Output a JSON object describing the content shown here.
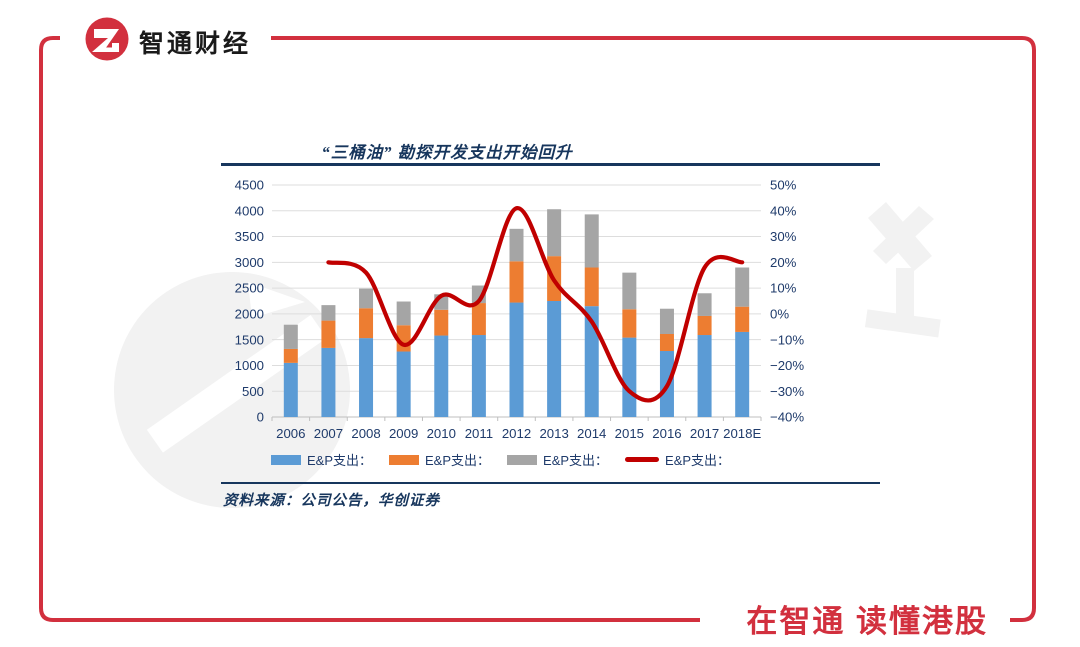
{
  "brand": {
    "name": "智通财经",
    "logo": "zhitong-zg-monogram"
  },
  "slogan": "在智通 读懂港股",
  "source_note": "资料来源：公司公告，华创证券",
  "colors": {
    "accent_red": "#D2303E",
    "line_red": "#C00000",
    "navy": "#17365D",
    "axis_text": "#1F3B6B",
    "bar_blue": "#5B9BD5",
    "bar_orange": "#ED7D31",
    "bar_gray": "#A5A5A5",
    "gridline": "#DDDDDD",
    "watermark": "#F2F2F2"
  },
  "chart_data": {
    "type": "combo-stacked-bar-line",
    "title": "“三桶油” 勘探开发支出开始回升",
    "categories": [
      "2006",
      "2007",
      "2008",
      "2009",
      "2010",
      "2011",
      "2012",
      "2013",
      "2014",
      "2015",
      "2016",
      "2017",
      "2018E"
    ],
    "bar_series": [
      {
        "name": "E&P支出：",
        "color": "#5B9BD5",
        "values": [
          1050,
          1340,
          1530,
          1270,
          1580,
          1590,
          2220,
          2250,
          2150,
          1540,
          1280,
          1590,
          1650
        ]
      },
      {
        "name": "E&P支出：",
        "color": "#ED7D31",
        "values": [
          270,
          530,
          580,
          510,
          500,
          620,
          800,
          870,
          750,
          550,
          330,
          370,
          490
        ]
      },
      {
        "name": "E&P支出：",
        "color": "#A5A5A5",
        "values": [
          470,
          300,
          380,
          460,
          300,
          340,
          630,
          910,
          1030,
          710,
          490,
          440,
          760
        ]
      }
    ],
    "bar_totals": [
      1790,
      2170,
      2490,
      2240,
      2380,
      2550,
      3650,
      4030,
      3930,
      2800,
      2100,
      2400,
      2900
    ],
    "line_series": {
      "name": "E&P支出：",
      "color": "#C00000",
      "values": [
        null,
        20,
        16,
        -12,
        7,
        5,
        41,
        13,
        -3,
        -30,
        -28,
        18,
        20
      ]
    },
    "left_axis": {
      "min": 0,
      "max": 4500,
      "step": 500,
      "ticks": [
        "4500",
        "4000",
        "3500",
        "3000",
        "2500",
        "2000",
        "1500",
        "1000",
        "500",
        "0"
      ]
    },
    "right_axis": {
      "min": -40,
      "max": 50,
      "step": 10,
      "ticks": [
        "50%",
        "40%",
        "30%",
        "20%",
        "10%",
        "0%",
        "−10%",
        "−20%",
        "−30%",
        "−40%"
      ]
    },
    "legend": [
      {
        "type": "rect",
        "color": "#5B9BD5",
        "label": "E&P支出："
      },
      {
        "type": "rect",
        "color": "#ED7D31",
        "label": "E&P支出："
      },
      {
        "type": "rect",
        "color": "#A5A5A5",
        "label": "E&P支出："
      },
      {
        "type": "line",
        "color": "#C00000",
        "label": "E&P支出："
      }
    ],
    "grid": true,
    "legend_position": "bottom"
  }
}
